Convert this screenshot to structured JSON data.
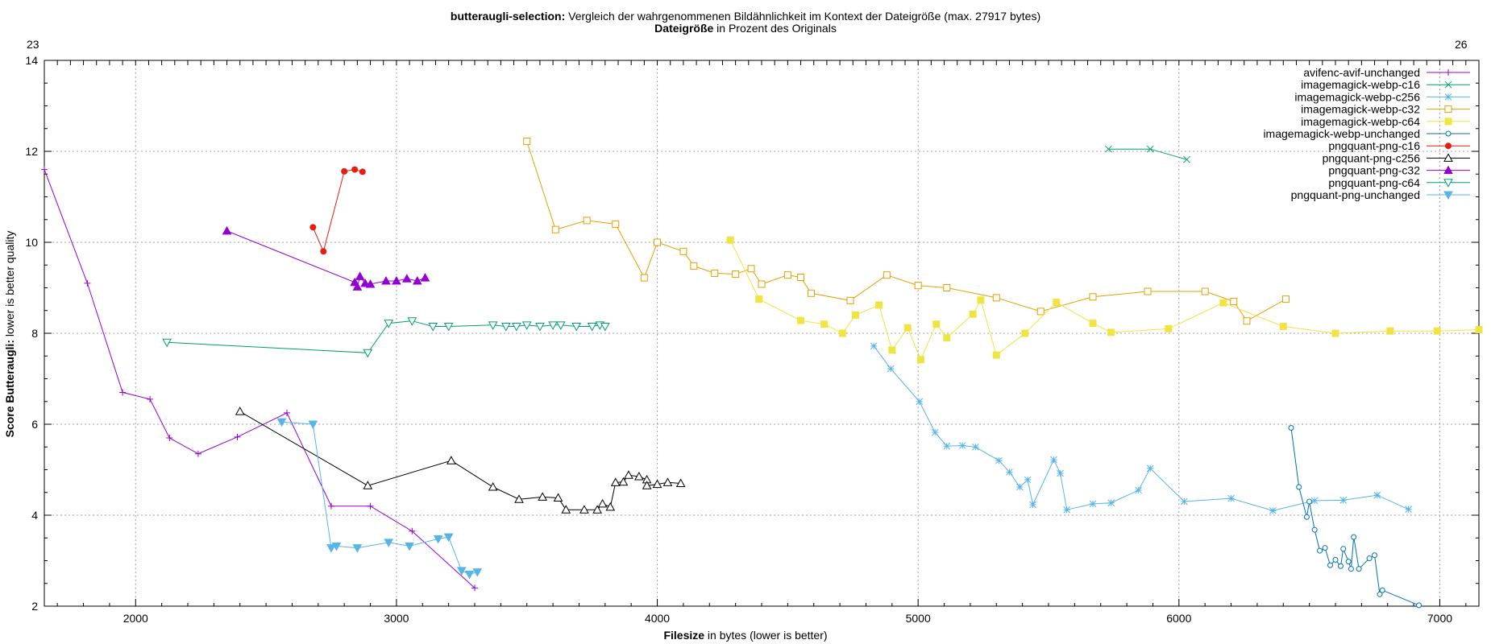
{
  "chart_data": {
    "type": "line",
    "title_bold": "butteraugli-selection:",
    "title_rest": " Vergleich der wahrgenommenen Bildähnlichkeit im Kontext der Dateigröße (max. 27917 bytes)",
    "x2label_bold": "Dateigröße",
    "x2label_rest": " in Prozent des Originals",
    "xlabel_bold": "Filesize",
    "xlabel_rest": " in bytes (lower is better)",
    "ylabel_bold": "Score Butteraugli:",
    "ylabel_rest": " lower is better quality",
    "xlim": [
      1650,
      7150
    ],
    "ylim": [
      2,
      14
    ],
    "x_ticks": [
      2000,
      3000,
      4000,
      5000,
      6000,
      7000
    ],
    "y_ticks": [
      2,
      4,
      6,
      8,
      10,
      12,
      14
    ],
    "x2_tick_start": 23,
    "x2_tick_end": 26,
    "grid": true,
    "legend_position": "top-right",
    "series": [
      {
        "name": "avifenc-avif-unchanged",
        "color": "#9400d3",
        "marker": "plus",
        "points": [
          [
            1650,
            11.6
          ],
          [
            1815,
            9.1
          ],
          [
            1950,
            6.7
          ],
          [
            2055,
            6.55
          ],
          [
            2130,
            5.7
          ],
          [
            2240,
            5.35
          ],
          [
            2390,
            5.72
          ],
          [
            2580,
            6.25
          ],
          [
            2750,
            4.2
          ],
          [
            2900,
            4.2
          ],
          [
            3060,
            3.65
          ],
          [
            3300,
            2.4
          ]
        ]
      },
      {
        "name": "imagemagick-webp-c16",
        "color": "#009e73",
        "marker": "cross",
        "points": [
          [
            5730,
            12.05
          ],
          [
            5890,
            12.05
          ],
          [
            6030,
            11.82
          ]
        ]
      },
      {
        "name": "imagemagick-webp-c256",
        "color": "#56b4e9",
        "marker": "star",
        "points": [
          [
            4830,
            7.72
          ],
          [
            4895,
            7.22
          ],
          [
            5005,
            6.5
          ],
          [
            5065,
            5.82
          ],
          [
            5110,
            5.52
          ],
          [
            5170,
            5.53
          ],
          [
            5220,
            5.5
          ],
          [
            5310,
            5.2
          ],
          [
            5350,
            4.95
          ],
          [
            5390,
            4.62
          ],
          [
            5420,
            4.78
          ],
          [
            5440,
            4.23
          ],
          [
            5520,
            5.22
          ],
          [
            5545,
            4.92
          ],
          [
            5570,
            4.12
          ],
          [
            5670,
            4.25
          ],
          [
            5740,
            4.27
          ],
          [
            5845,
            4.55
          ],
          [
            5890,
            5.03
          ],
          [
            6020,
            4.3
          ],
          [
            6200,
            4.37
          ],
          [
            6360,
            4.1
          ],
          [
            6520,
            4.32
          ],
          [
            6630,
            4.33
          ],
          [
            6760,
            4.44
          ],
          [
            6880,
            4.13
          ]
        ]
      },
      {
        "name": "imagemagick-webp-c32",
        "color": "#e69f00",
        "marker": "square",
        "points": [
          [
            3500,
            12.22
          ],
          [
            3610,
            10.28
          ],
          [
            3730,
            10.48
          ],
          [
            3840,
            10.4
          ],
          [
            3950,
            9.22
          ],
          [
            4000,
            10.0
          ],
          [
            4100,
            9.8
          ],
          [
            4140,
            9.48
          ],
          [
            4220,
            9.32
          ],
          [
            4300,
            9.3
          ],
          [
            4360,
            9.42
          ],
          [
            4400,
            9.08
          ],
          [
            4500,
            9.28
          ],
          [
            4550,
            9.23
          ],
          [
            4590,
            8.88
          ],
          [
            4740,
            8.72
          ],
          [
            4880,
            9.28
          ],
          [
            5000,
            9.05
          ],
          [
            5110,
            9.0
          ],
          [
            5300,
            8.78
          ],
          [
            5470,
            8.48
          ],
          [
            5670,
            8.8
          ],
          [
            5880,
            8.92
          ],
          [
            6100,
            8.92
          ],
          [
            6210,
            8.7
          ],
          [
            6260,
            8.27
          ],
          [
            6410,
            8.75
          ]
        ]
      },
      {
        "name": "imagemagick-webp-c64",
        "color": "#f0e442",
        "marker": "filled-square",
        "points": [
          [
            4280,
            10.05
          ],
          [
            4390,
            8.75
          ],
          [
            4550,
            8.28
          ],
          [
            4640,
            8.2
          ],
          [
            4710,
            8.0
          ],
          [
            4760,
            8.4
          ],
          [
            4850,
            8.62
          ],
          [
            4900,
            7.63
          ],
          [
            4960,
            8.12
          ],
          [
            5010,
            7.42
          ],
          [
            5070,
            8.2
          ],
          [
            5110,
            7.9
          ],
          [
            5210,
            8.42
          ],
          [
            5240,
            8.73
          ],
          [
            5300,
            7.52
          ],
          [
            5410,
            8.0
          ],
          [
            5530,
            8.68
          ],
          [
            5670,
            8.22
          ],
          [
            5740,
            8.02
          ],
          [
            5960,
            8.1
          ],
          [
            6170,
            8.67
          ],
          [
            6400,
            8.15
          ],
          [
            6600,
            8.0
          ],
          [
            6810,
            8.05
          ],
          [
            6990,
            8.05
          ],
          [
            7150,
            8.08
          ]
        ]
      },
      {
        "name": "imagemagick-webp-unchanged",
        "color": "#0072b2",
        "marker": "circle",
        "points": [
          [
            6430,
            5.92
          ],
          [
            6460,
            4.62
          ],
          [
            6490,
            3.96
          ],
          [
            6500,
            4.3
          ],
          [
            6520,
            3.68
          ],
          [
            6540,
            3.22
          ],
          [
            6560,
            3.28
          ],
          [
            6580,
            2.9
          ],
          [
            6600,
            3.02
          ],
          [
            6620,
            2.88
          ],
          [
            6630,
            3.26
          ],
          [
            6650,
            2.98
          ],
          [
            6660,
            2.82
          ],
          [
            6670,
            3.52
          ],
          [
            6690,
            2.82
          ],
          [
            6730,
            3.05
          ],
          [
            6750,
            3.12
          ],
          [
            6770,
            2.26
          ],
          [
            6780,
            2.35
          ],
          [
            6920,
            2.02
          ]
        ]
      },
      {
        "name": "pngquant-png-c16",
        "color": "#e51e10",
        "marker": "filled-circle",
        "points": [
          [
            2680,
            10.33
          ],
          [
            2720,
            9.8
          ],
          [
            2800,
            11.56
          ],
          [
            2840,
            11.6
          ],
          [
            2870,
            11.55
          ]
        ]
      },
      {
        "name": "pngquant-png-c256",
        "color": "#000000",
        "marker": "triangle",
        "points": [
          [
            2400,
            6.28
          ],
          [
            2890,
            4.65
          ],
          [
            3210,
            5.2
          ],
          [
            3370,
            4.62
          ],
          [
            3470,
            4.35
          ],
          [
            3560,
            4.4
          ],
          [
            3620,
            4.38
          ],
          [
            3650,
            4.12
          ],
          [
            3720,
            4.12
          ],
          [
            3770,
            4.12
          ],
          [
            3790,
            4.25
          ],
          [
            3820,
            4.18
          ],
          [
            3840,
            4.72
          ],
          [
            3870,
            4.73
          ],
          [
            3890,
            4.88
          ],
          [
            3930,
            4.85
          ],
          [
            3960,
            4.78
          ],
          [
            3960,
            4.65
          ],
          [
            4000,
            4.68
          ],
          [
            4040,
            4.72
          ],
          [
            4090,
            4.7
          ]
        ]
      },
      {
        "name": "pngquant-png-c32",
        "color": "#9400d3",
        "marker": "filled-triangle",
        "points": [
          [
            2350,
            10.25
          ],
          [
            2840,
            9.12
          ],
          [
            2850,
            9.02
          ],
          [
            2860,
            9.25
          ],
          [
            2880,
            9.1
          ],
          [
            2900,
            9.08
          ],
          [
            2960,
            9.15
          ],
          [
            3000,
            9.15
          ],
          [
            3040,
            9.2
          ],
          [
            3080,
            9.15
          ],
          [
            3110,
            9.22
          ]
        ]
      },
      {
        "name": "pngquant-png-c64",
        "color": "#009e73",
        "marker": "inv-triangle",
        "points": [
          [
            2120,
            7.8
          ],
          [
            2890,
            7.57
          ],
          [
            2970,
            8.22
          ],
          [
            3060,
            8.27
          ],
          [
            3140,
            8.15
          ],
          [
            3200,
            8.15
          ],
          [
            3370,
            8.18
          ],
          [
            3420,
            8.15
          ],
          [
            3460,
            8.15
          ],
          [
            3500,
            8.18
          ],
          [
            3550,
            8.15
          ],
          [
            3600,
            8.18
          ],
          [
            3630,
            8.18
          ],
          [
            3690,
            8.15
          ],
          [
            3750,
            8.15
          ],
          [
            3780,
            8.18
          ],
          [
            3800,
            8.15
          ]
        ]
      },
      {
        "name": "pngquant-png-unchanged",
        "color": "#56b4e9",
        "marker": "filled-inv-triangle",
        "points": [
          [
            2560,
            6.05
          ],
          [
            2680,
            6.0
          ],
          [
            2750,
            3.28
          ],
          [
            2770,
            3.32
          ],
          [
            2850,
            3.28
          ],
          [
            2970,
            3.4
          ],
          [
            3050,
            3.32
          ],
          [
            3160,
            3.48
          ],
          [
            3200,
            3.52
          ],
          [
            3250,
            2.78
          ],
          [
            3280,
            2.7
          ],
          [
            3310,
            2.75
          ]
        ]
      }
    ]
  }
}
